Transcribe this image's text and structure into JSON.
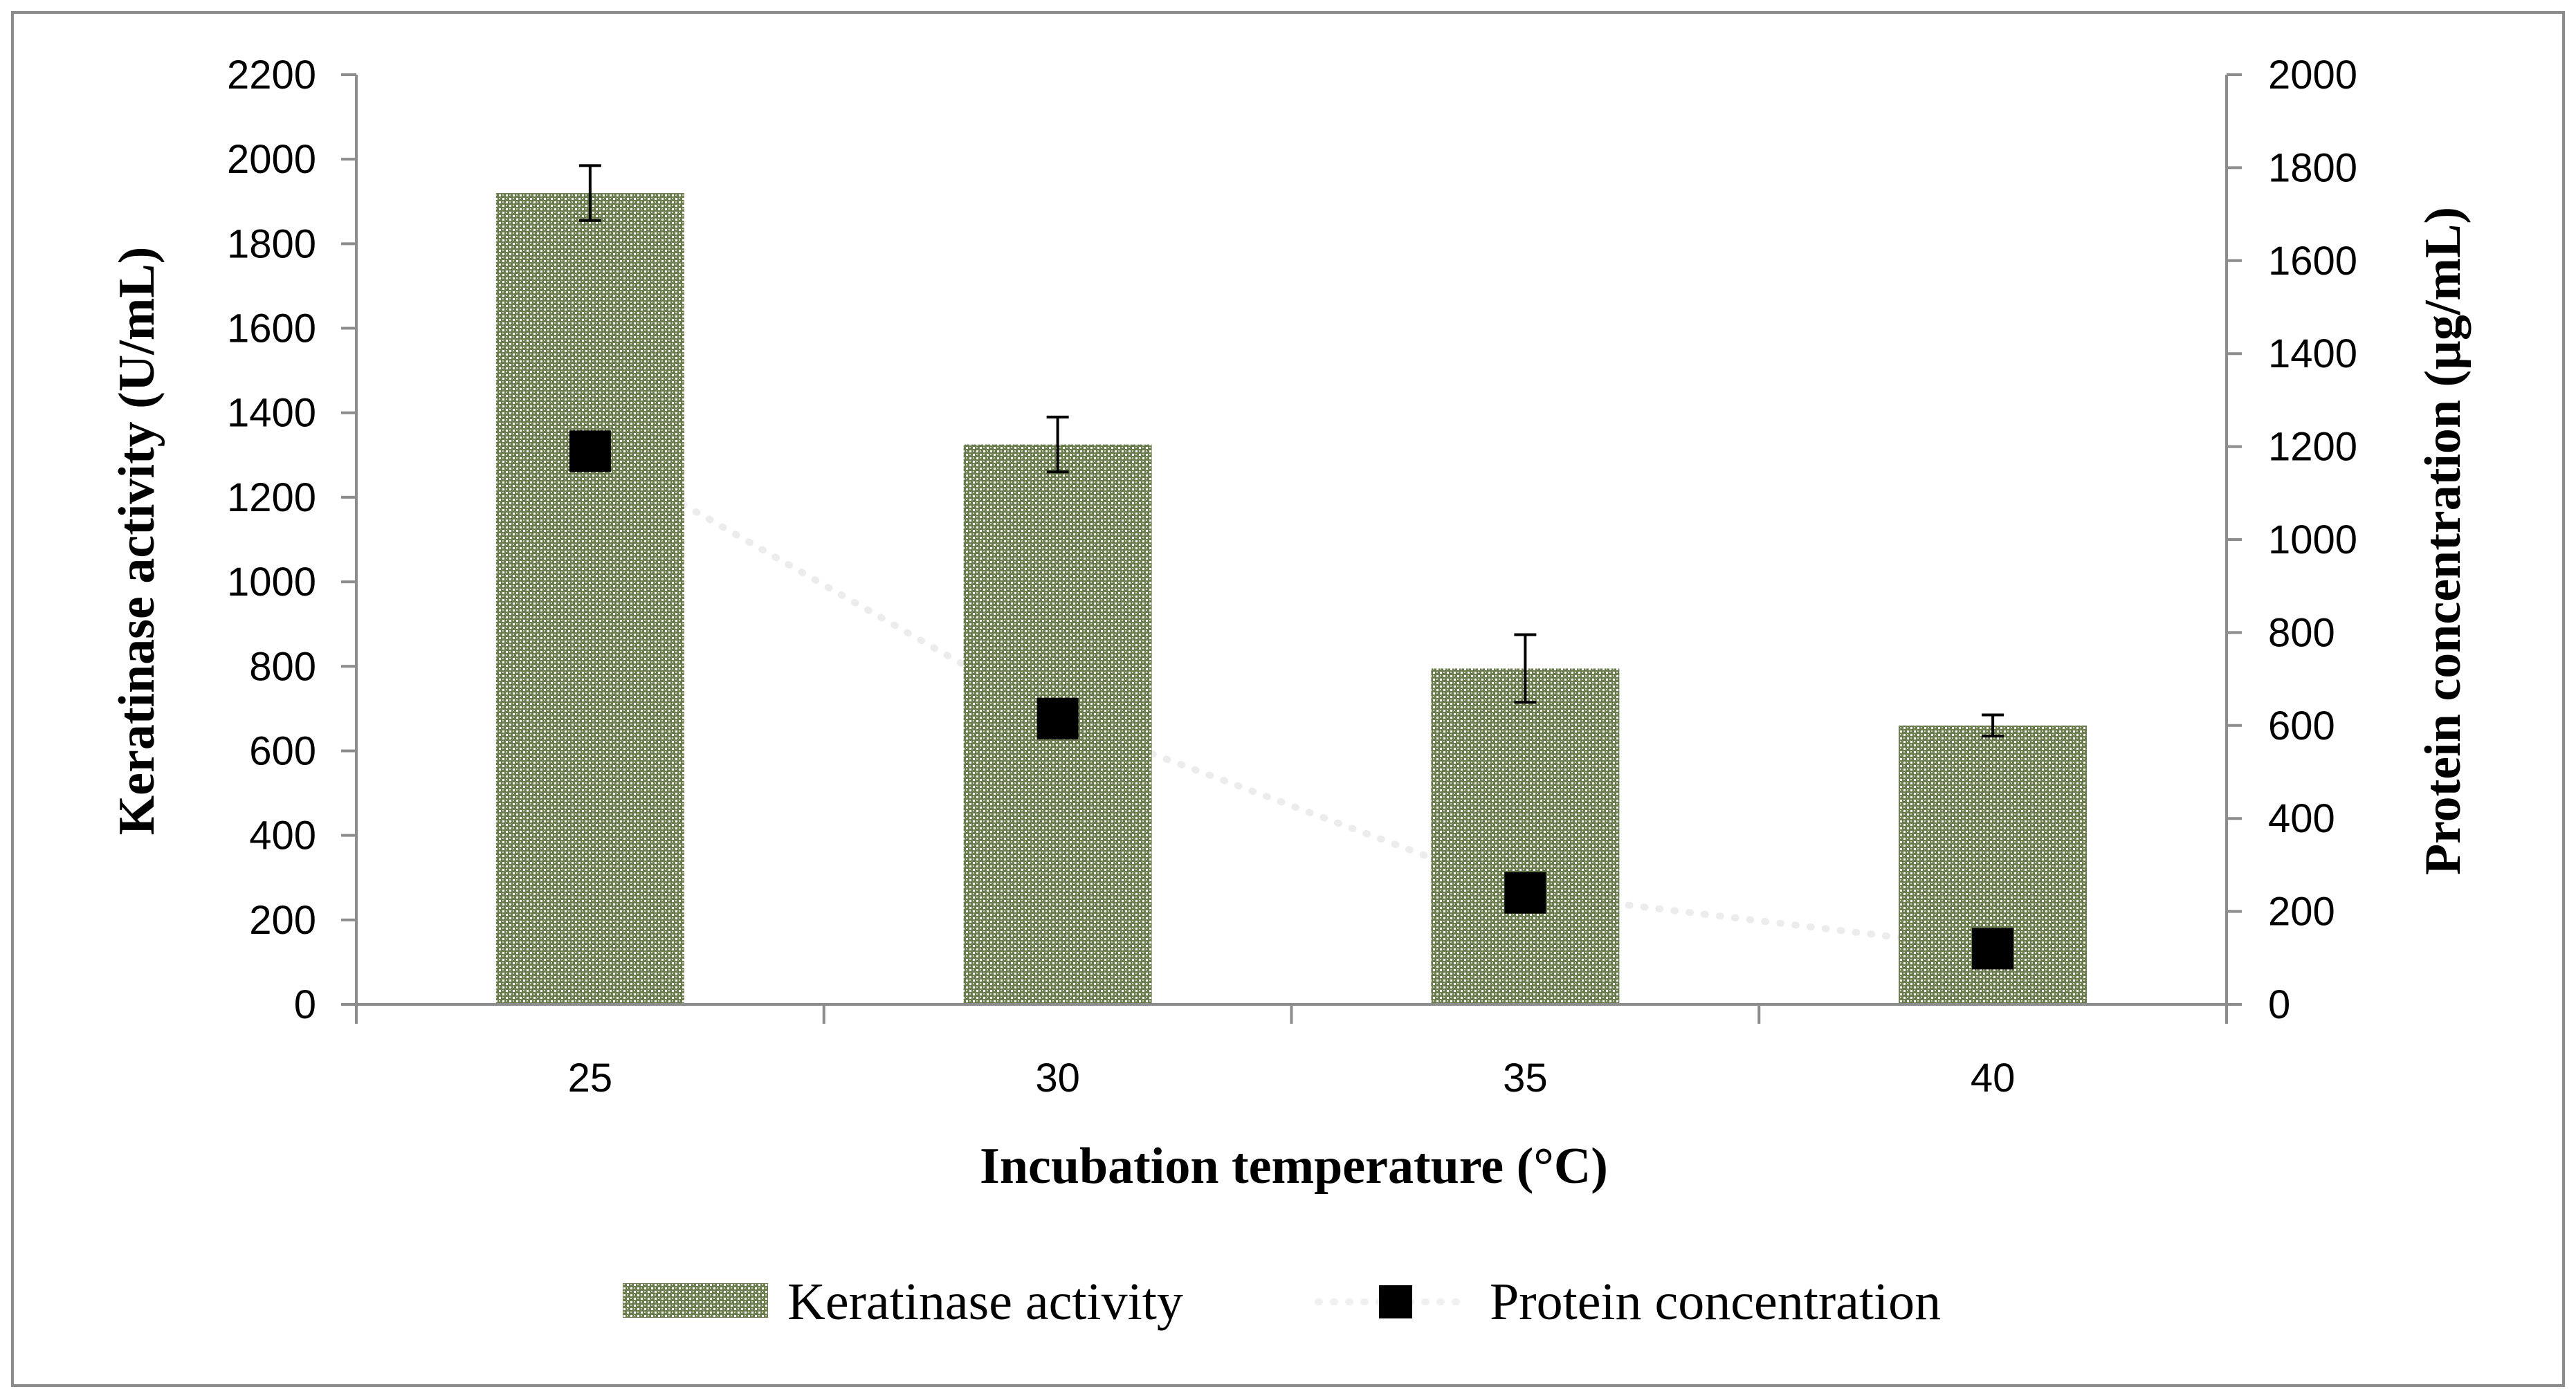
{
  "chart_data": {
    "type": "bar",
    "categories": [
      "25",
      "30",
      "35",
      "40"
    ],
    "xlabel": "Incubation temperature (°C)",
    "ylabel": "Keratinase activity (U/mL)",
    "y2label": "Protein concentration (µg/mL)",
    "ylim": [
      0,
      2200
    ],
    "y2lim": [
      0,
      2000
    ],
    "yticks": [
      0,
      200,
      400,
      600,
      800,
      1000,
      1200,
      1400,
      1600,
      1800,
      2000,
      2200
    ],
    "y2ticks": [
      0,
      200,
      400,
      600,
      800,
      1000,
      1200,
      1400,
      1600,
      1800,
      2000
    ],
    "grid": false,
    "legend_position": "bottom",
    "series": [
      {
        "name": "Keratinase activity",
        "type": "bar",
        "axis": "left",
        "values": [
          1920,
          1325,
          795,
          660
        ],
        "error": [
          65,
          65,
          80,
          25
        ],
        "color": "#6b7d4f"
      },
      {
        "name": "Protein concentration",
        "type": "scatter",
        "axis": "right",
        "values": [
          1190,
          615,
          240,
          120
        ],
        "trendline": "dotted",
        "color": "#000000"
      }
    ]
  }
}
